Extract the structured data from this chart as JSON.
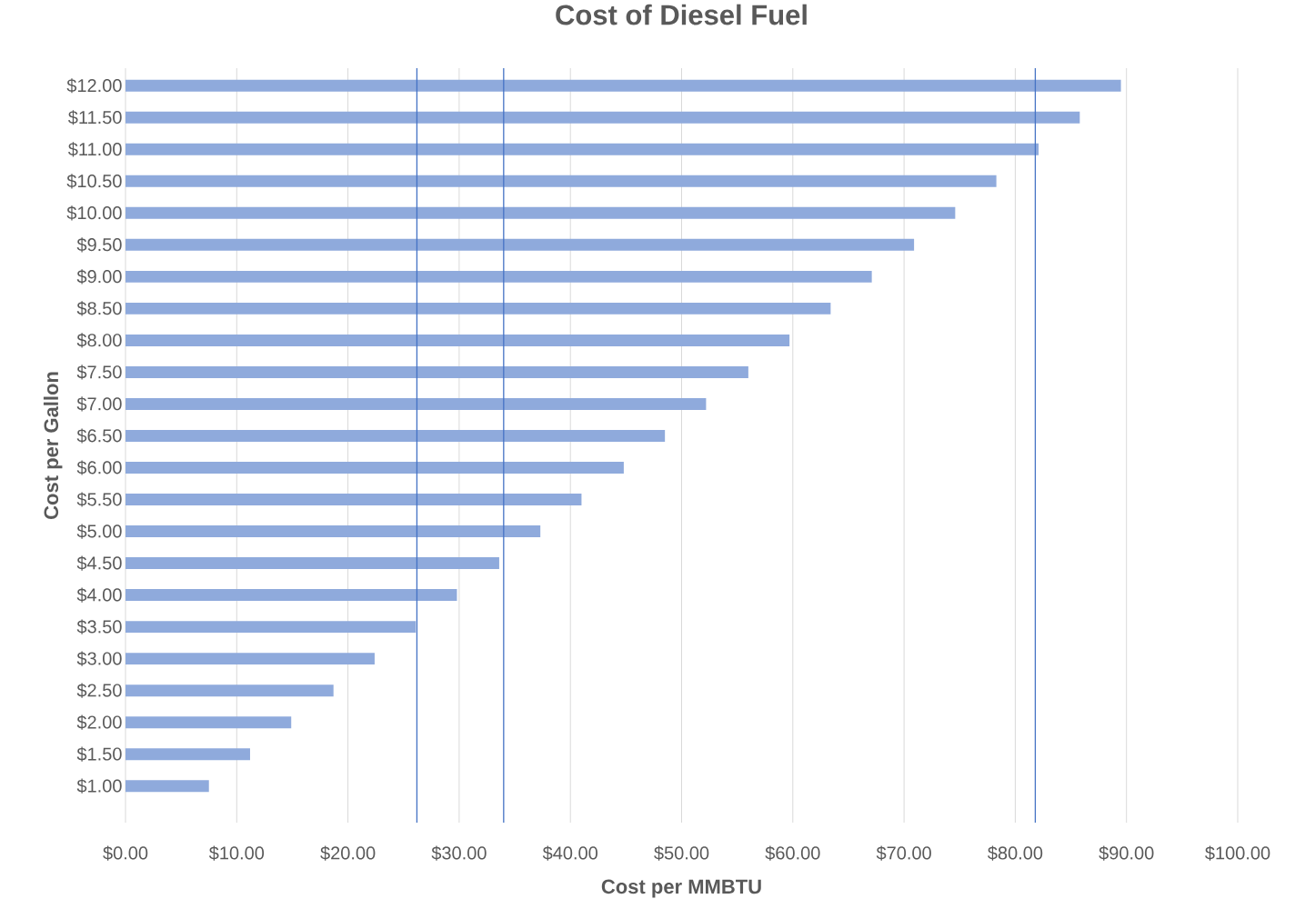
{
  "chart_data": {
    "type": "bar",
    "orientation": "horizontal",
    "title": "Cost of Diesel Fuel",
    "xlabel": "Cost per MMBTU",
    "ylabel": "Cost per Gallon",
    "categories": [
      "$12.00",
      "$11.50",
      "$11.00",
      "$10.50",
      "$10.00",
      "$9.50",
      "$9.00",
      "$8.50",
      "$8.00",
      "$7.50",
      "$7.00",
      "$6.50",
      "$6.00",
      "$5.50",
      "$5.00",
      "$4.50",
      "$4.00",
      "$3.50",
      "$3.00",
      "$2.50",
      "$2.00",
      "$1.50",
      "$1.00"
    ],
    "values": [
      89.5,
      85.8,
      82.1,
      78.3,
      74.6,
      70.9,
      67.1,
      63.4,
      59.7,
      56.0,
      52.2,
      48.5,
      44.8,
      41.0,
      37.3,
      33.6,
      29.8,
      26.1,
      22.4,
      18.7,
      14.9,
      11.2,
      7.5
    ],
    "color": "#8faadc",
    "xlim": [
      0,
      100
    ],
    "xticks": [
      {
        "value": 0,
        "label": "$0.00"
      },
      {
        "value": 10,
        "label": "$10.00"
      },
      {
        "value": 20,
        "label": "$20.00"
      },
      {
        "value": 30,
        "label": "$30.00"
      },
      {
        "value": 40,
        "label": "$40.00"
      },
      {
        "value": 50,
        "label": "$50.00"
      },
      {
        "value": 60,
        "label": "$60.00"
      },
      {
        "value": 70,
        "label": "$70.00"
      },
      {
        "value": 80,
        "label": "$80.00"
      },
      {
        "value": 90,
        "label": "$90.00"
      },
      {
        "value": 100,
        "label": "$100.00"
      }
    ],
    "grid": "x",
    "ref_lines": [
      {
        "axis": "x",
        "value": 26.2,
        "color": "#4472c4"
      },
      {
        "axis": "x",
        "value": 34.0,
        "color": "#4472c4"
      },
      {
        "axis": "x",
        "value": 81.8,
        "color": "#4472c4"
      }
    ]
  }
}
